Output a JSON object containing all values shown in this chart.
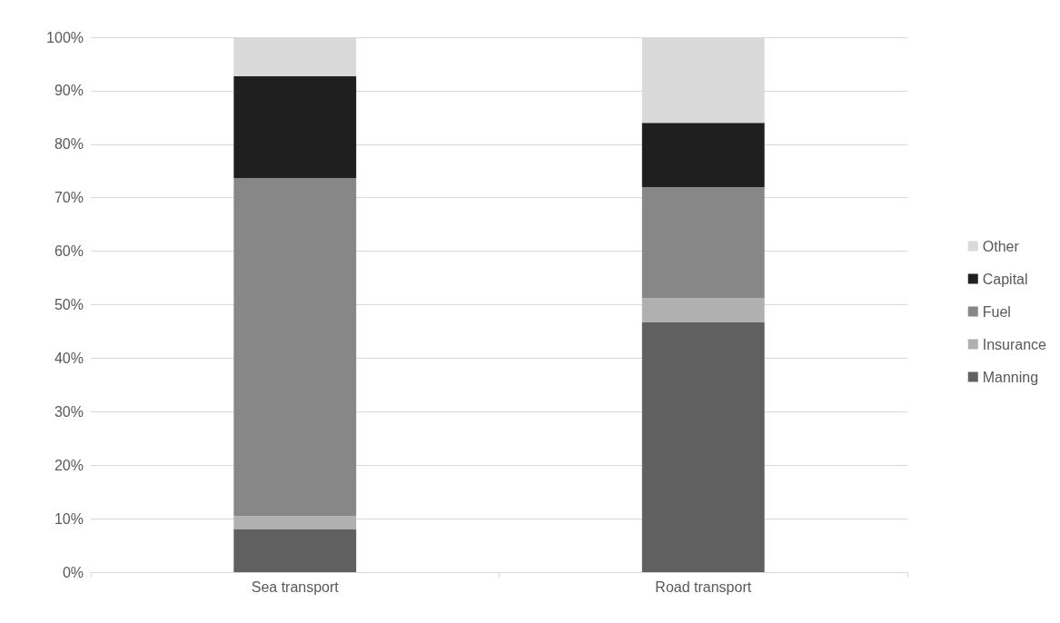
{
  "chart_data": {
    "type": "bar",
    "stacked": true,
    "categories": [
      "Sea transport",
      "Road transport"
    ],
    "series": [
      {
        "name": "Manning",
        "color": "#606060",
        "values": [
          8,
          46.7
        ]
      },
      {
        "name": "Insurance",
        "color": "#b0b0b0",
        "values": [
          2.5,
          4.5
        ]
      },
      {
        "name": "Fuel",
        "color": "#878787",
        "values": [
          63.2,
          20.8
        ]
      },
      {
        "name": "Capital",
        "color": "#1f1f1f",
        "values": [
          19,
          12
        ]
      },
      {
        "name": "Other",
        "color": "#d9d9d9",
        "values": [
          7.3,
          16
        ]
      }
    ],
    "ylim": [
      0,
      100
    ],
    "yticks": [
      {
        "value": 0,
        "label": "0%"
      },
      {
        "value": 10,
        "label": "10%"
      },
      {
        "value": 20,
        "label": "20%"
      },
      {
        "value": 30,
        "label": "30%"
      },
      {
        "value": 40,
        "label": "40%"
      },
      {
        "value": 50,
        "label": "50%"
      },
      {
        "value": 60,
        "label": "60%"
      },
      {
        "value": 70,
        "label": "70%"
      },
      {
        "value": 80,
        "label": "80%"
      },
      {
        "value": 90,
        "label": "90%"
      },
      {
        "value": 100,
        "label": "100%"
      }
    ],
    "grid": "y",
    "legend": "right"
  }
}
